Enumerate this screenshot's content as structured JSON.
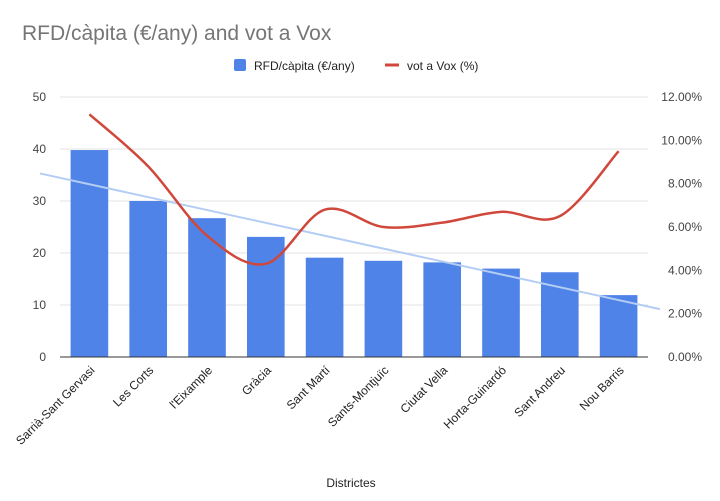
{
  "chart_data": {
    "type": "bar+line",
    "title": "RFD/càpita (€/any) and vot a Vox",
    "xlabel": "Districtes",
    "categories": [
      "Sarrià-Sant Gervasi",
      "Les Corts",
      "l'Eixample",
      "Gràcia",
      "Sant Martí",
      "Sants-Montjuïc",
      "Ciutat Vella",
      "Horta-Guinardó",
      "Sant Andreu",
      "Nou Barris"
    ],
    "series": [
      {
        "name": "RFD/càpita (€/any)",
        "type": "bar",
        "axis": "left",
        "color": "#5083E8",
        "values": [
          39.8,
          30.0,
          26.7,
          23.1,
          19.1,
          18.5,
          18.2,
          17.0,
          16.3,
          11.9
        ]
      },
      {
        "name": "vot a Vox (%)",
        "type": "line",
        "axis": "right",
        "color": "#D0483B",
        "smooth": true,
        "values": [
          11.2,
          8.8,
          5.6,
          4.3,
          6.8,
          6.0,
          6.2,
          6.7,
          6.5,
          9.5
        ]
      }
    ],
    "trendline": {
      "series": "RFD/càpita (€/any)",
      "color": "#B4CDF4",
      "start": 35.3,
      "end": 9.2
    },
    "y_left": {
      "ylim": [
        0,
        50
      ],
      "ticks": [
        "0",
        "10",
        "20",
        "30",
        "40",
        "50"
      ]
    },
    "y_right": {
      "ylim": [
        0,
        12
      ],
      "ticks": [
        "0.00%",
        "2.00%",
        "4.00%",
        "6.00%",
        "8.00%",
        "10.00%",
        "12.00%"
      ]
    },
    "grid": true,
    "legend_position": "top-center"
  }
}
